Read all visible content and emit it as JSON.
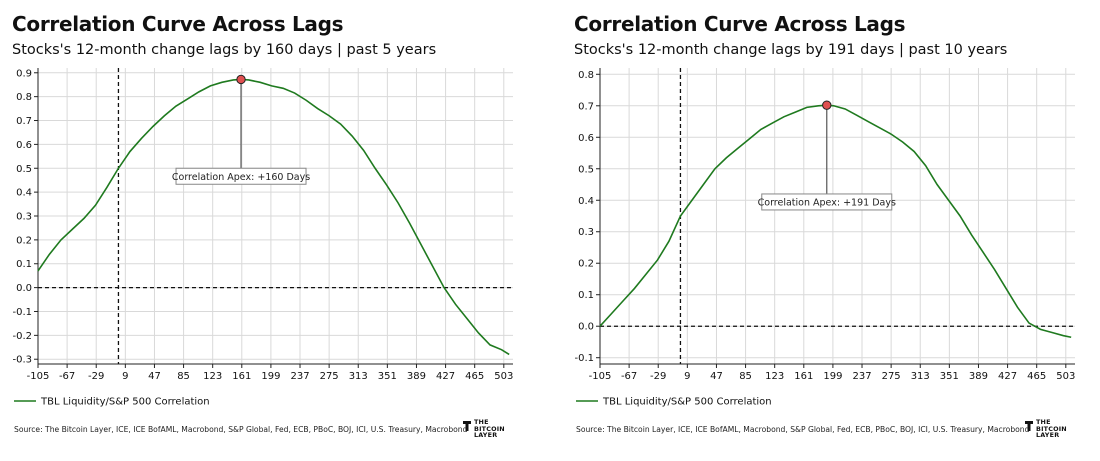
{
  "chart_data": [
    {
      "type": "line",
      "title": "Correlation Curve Across Lags",
      "subtitle": "Stocks's 12-month change lags by 160 days | past 5 years",
      "xlabel": "",
      "ylabel": "",
      "xlim": [
        -105,
        515
      ],
      "ylim": [
        -0.32,
        0.92
      ],
      "xticks": [
        -105,
        -67,
        -29,
        9,
        47,
        85,
        123,
        161,
        199,
        237,
        275,
        313,
        351,
        389,
        427,
        465,
        503
      ],
      "yticks": [
        -0.3,
        -0.2,
        -0.1,
        0.0,
        0.1,
        0.2,
        0.3,
        0.4,
        0.5,
        0.6,
        0.7,
        0.8,
        0.9
      ],
      "ytick_labels": [
        "-0.3",
        "-0.2",
        "-0.1",
        "0.0",
        "0.1",
        "0.2",
        "0.3",
        "0.4",
        "0.5",
        "0.6",
        "0.7",
        "0.8",
        "0.9"
      ],
      "grid": true,
      "zero_lag_line": 0,
      "zero_corr_line": 0,
      "series": [
        {
          "name": "TBL Liquidity/S&P 500 Correlation",
          "color": "#1f7a1f",
          "x": [
            -105,
            -90,
            -75,
            -60,
            -45,
            -30,
            -15,
            0,
            15,
            30,
            45,
            60,
            75,
            90,
            105,
            120,
            135,
            150,
            160,
            170,
            185,
            200,
            215,
            230,
            245,
            260,
            275,
            290,
            305,
            320,
            335,
            350,
            365,
            380,
            395,
            410,
            425,
            440,
            455,
            470,
            485,
            500,
            510
          ],
          "y": [
            0.07,
            0.14,
            0.2,
            0.245,
            0.29,
            0.345,
            0.42,
            0.5,
            0.57,
            0.625,
            0.675,
            0.72,
            0.76,
            0.79,
            0.82,
            0.845,
            0.86,
            0.87,
            0.872,
            0.87,
            0.86,
            0.845,
            0.835,
            0.815,
            0.785,
            0.75,
            0.72,
            0.685,
            0.635,
            0.575,
            0.5,
            0.43,
            0.355,
            0.27,
            0.18,
            0.09,
            0.0,
            -0.07,
            -0.13,
            -0.19,
            -0.24,
            -0.26,
            -0.28
          ]
        }
      ],
      "apex": {
        "x": 160,
        "y": 0.872,
        "label": "Correlation Apex: +160 Days",
        "label_y": 0.5
      },
      "apex_color": "#e05050",
      "legend": "TBL Liquidity/S&P 500 Correlation",
      "legend_position": "bottom-left"
    },
    {
      "type": "line",
      "title": "Correlation Curve Across Lags",
      "subtitle": "Stocks's 12-month change lags by 191 days | past 10 years",
      "xlabel": "",
      "ylabel": "",
      "xlim": [
        -105,
        515
      ],
      "ylim": [
        -0.12,
        0.82
      ],
      "xticks": [
        -105,
        -67,
        -29,
        9,
        47,
        85,
        123,
        161,
        199,
        237,
        275,
        313,
        351,
        389,
        427,
        465,
        503
      ],
      "yticks": [
        -0.1,
        0.0,
        0.1,
        0.2,
        0.3,
        0.4,
        0.5,
        0.6,
        0.7,
        0.8
      ],
      "ytick_labels": [
        "-0.1",
        "0.0",
        "0.1",
        "0.2",
        "0.3",
        "0.4",
        "0.5",
        "0.6",
        "0.7",
        "0.8"
      ],
      "grid": true,
      "zero_lag_line": 0,
      "zero_corr_line": 0,
      "series": [
        {
          "name": "TBL Liquidity/S&P 500 Correlation",
          "color": "#1f7a1f",
          "x": [
            -105,
            -90,
            -75,
            -60,
            -45,
            -30,
            -15,
            0,
            15,
            30,
            45,
            60,
            75,
            90,
            105,
            120,
            135,
            150,
            165,
            180,
            191,
            200,
            215,
            230,
            245,
            260,
            275,
            290,
            305,
            320,
            335,
            350,
            365,
            380,
            395,
            410,
            425,
            440,
            455,
            470,
            485,
            500,
            510
          ],
          "y": [
            0.0,
            0.04,
            0.08,
            0.12,
            0.165,
            0.21,
            0.27,
            0.35,
            0.4,
            0.45,
            0.5,
            0.535,
            0.565,
            0.595,
            0.625,
            0.645,
            0.665,
            0.68,
            0.695,
            0.7,
            0.702,
            0.7,
            0.69,
            0.67,
            0.65,
            0.63,
            0.61,
            0.585,
            0.555,
            0.51,
            0.45,
            0.4,
            0.35,
            0.29,
            0.235,
            0.18,
            0.12,
            0.06,
            0.01,
            -0.01,
            -0.02,
            -0.03,
            -0.035
          ]
        }
      ],
      "apex": {
        "x": 191,
        "y": 0.702,
        "label": "Correlation Apex: +191 Days",
        "label_y": 0.42
      },
      "apex_color": "#e05050",
      "legend": "TBL Liquidity/S&P 500 Correlation",
      "legend_position": "bottom-left"
    }
  ],
  "footer": {
    "source": "Source: The Bitcoin Layer, ICE, ICE BofAML, Macrobond, S&P Global, Fed, ECB, PBoC, BOJ, ICI, U.S. Treasury, Macrobond",
    "brand_lines": [
      "THE",
      "BITCOIN",
      "LAYER"
    ]
  }
}
